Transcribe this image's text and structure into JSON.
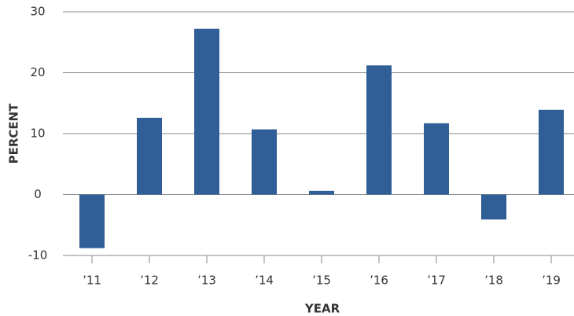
{
  "chart_data": {
    "type": "bar",
    "x_label": "YEAR",
    "y_label": "PERCENT",
    "categories": [
      "’11",
      "’12",
      "’13",
      "’14",
      "’15",
      "’16",
      "’17",
      "’18",
      "’19"
    ],
    "values": [
      -8.8,
      12.6,
      27.2,
      10.7,
      0.6,
      21.2,
      11.7,
      -4.1,
      13.9
    ],
    "color": "#2f5f96",
    "ylim": [
      -10,
      30
    ],
    "yticks": [
      -10,
      0,
      10,
      20,
      30
    ],
    "grid": true
  }
}
